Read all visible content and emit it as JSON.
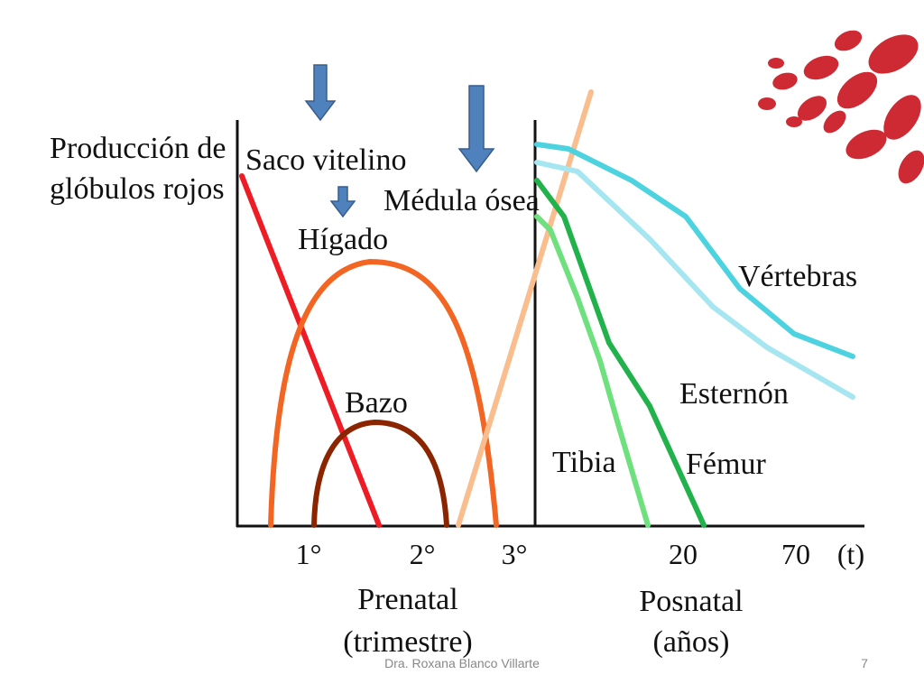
{
  "y_axis_label": [
    "Producción de",
    "glóbulos rojos"
  ],
  "curve_labels": {
    "saco": "Saco vitelino",
    "higado": "Hígado",
    "medula": "Médula ósea",
    "bazo": "Bazo",
    "vertebras": "Vértebras",
    "esternon": "Esternón",
    "tibia": "Tibia",
    "femur": "Fémur"
  },
  "x_labels": [
    "1°",
    "2°",
    "3°",
    "20",
    "70",
    "(t)"
  ],
  "sections": {
    "prenatal": [
      "Prenatal",
      "(trimestre)"
    ],
    "posnatal": [
      "Posnatal",
      "(años)"
    ]
  },
  "footer": {
    "author": "Dra. Roxana Blanco Villarte",
    "page": "7"
  }
}
